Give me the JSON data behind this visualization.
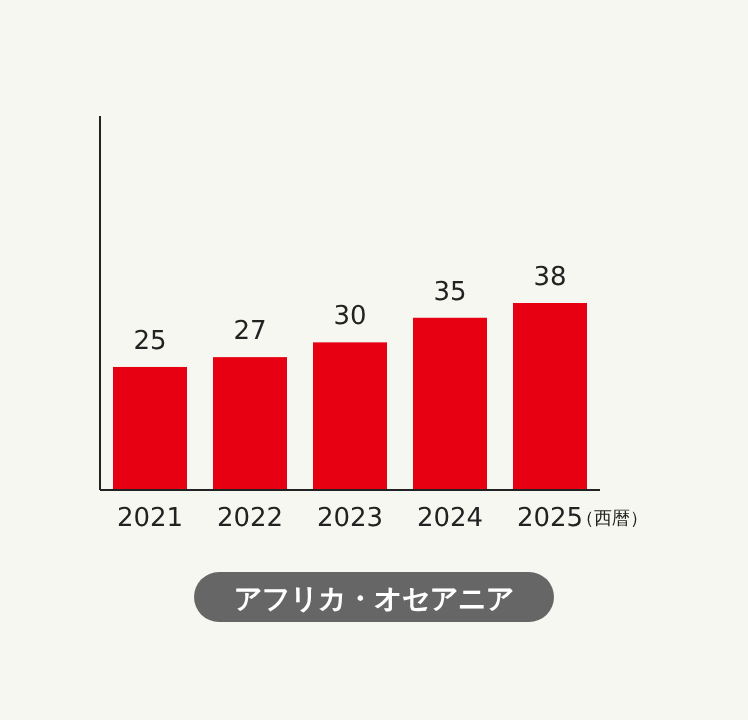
{
  "chart_data": {
    "type": "bar",
    "title": "アフリカ・オセアニア",
    "xlabel": "（西暦）",
    "categories": [
      "2021",
      "2022",
      "2023",
      "2024",
      "2025"
    ],
    "values": [
      25,
      27,
      30,
      35,
      38
    ],
    "color": "#e60012",
    "data_labels": true,
    "tick_labels": "x"
  }
}
